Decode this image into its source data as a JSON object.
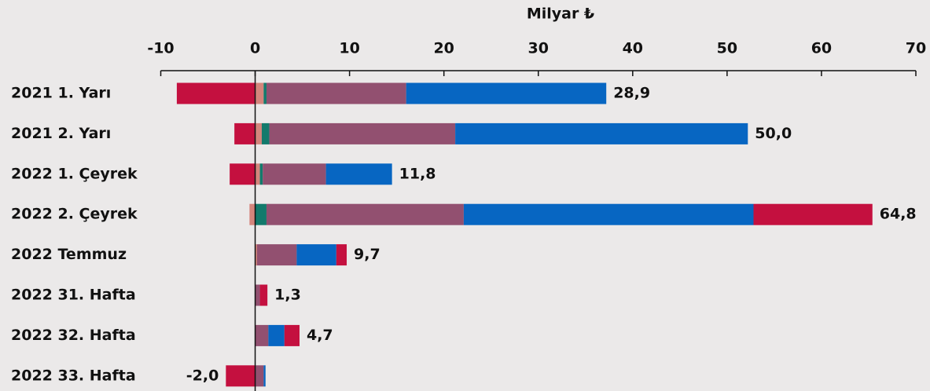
{
  "chart_data": {
    "type": "stacked_hbar",
    "xlabel": "Milyar ₺",
    "categories": [
      "2021 1. Yarı",
      "2021 2. Yarı",
      "2022 1. Çeyrek",
      "2022 2. Çeyrek",
      "2022 Temmuz",
      "2022 31. Hafta",
      "2022 32. Hafta",
      "2022 33. Hafta"
    ],
    "series": [
      {
        "color": "#d4857c",
        "values": [
          0.9,
          0.7,
          0.5,
          -0.6,
          0.2,
          0,
          0,
          0
        ]
      },
      {
        "color": "#137a6c",
        "values": [
          0.3,
          0.8,
          0.3,
          1.2,
          0,
          0,
          0,
          0
        ]
      },
      {
        "color": "#925070",
        "values": [
          14.8,
          19.7,
          6.7,
          20.9,
          4.2,
          0.5,
          1.4,
          0.9
        ]
      },
      {
        "color": "#0766c2",
        "values": [
          21.2,
          31.0,
          7.0,
          30.7,
          4.2,
          0,
          1.7,
          0.2
        ]
      },
      {
        "color": "#c4103f",
        "values": [
          -8.3,
          -2.2,
          -2.7,
          12.6,
          1.1,
          0.8,
          1.6,
          -3.1
        ]
      }
    ],
    "totals": [
      28.9,
      50.0,
      11.8,
      64.8,
      9.7,
      1.3,
      4.7,
      -2.0
    ],
    "total_labels": [
      "28,9",
      "50,0",
      "11,8",
      "64,8",
      "9,7",
      "1,3",
      "4,7",
      "-2,0"
    ],
    "xlim": [
      -10,
      70
    ],
    "xticks": [
      -10,
      0,
      10,
      20,
      30,
      40,
      50,
      60,
      70
    ]
  }
}
